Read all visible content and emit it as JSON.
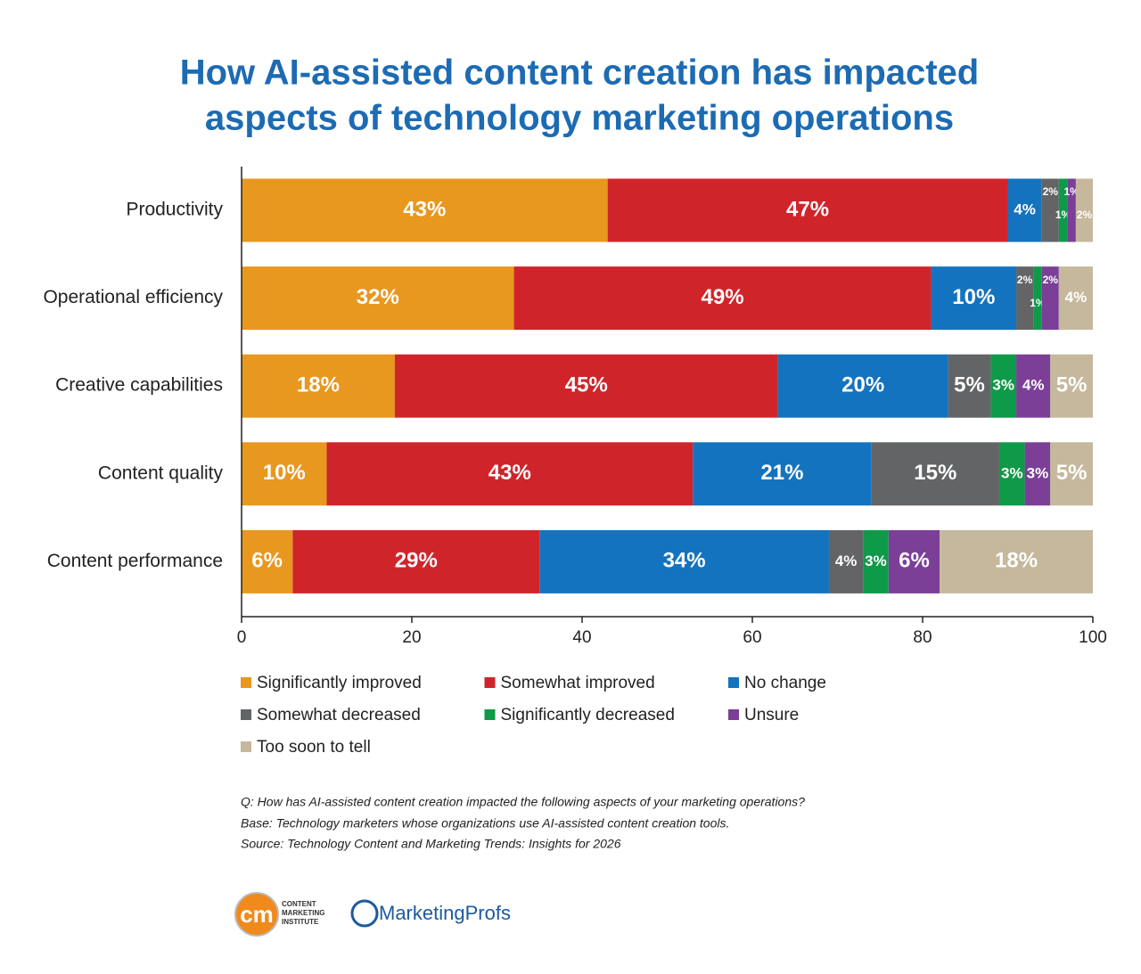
{
  "chart_data": {
    "type": "stacked-bar-horizontal",
    "title": [
      "How AI-assisted content creation has impacted",
      "aspects of technology marketing operations"
    ],
    "categories": [
      "Productivity",
      "Operational efficiency",
      "Creative capabilities",
      "Content quality",
      "Content performance"
    ],
    "series": [
      {
        "name": "Significantly improved",
        "color": "#e8971f",
        "values": [
          43,
          32,
          18,
          10,
          6
        ],
        "value_labels": [
          "43%",
          "32%",
          "18%",
          "10%",
          "6%"
        ]
      },
      {
        "name": "Somewhat improved",
        "color": "#d0242b",
        "values": [
          47,
          49,
          45,
          43,
          29
        ],
        "value_labels": [
          "47%",
          "49%",
          "45%",
          "43%",
          "29%"
        ]
      },
      {
        "name": "No change",
        "color": "#1473be",
        "values": [
          4,
          10,
          20,
          21,
          34
        ],
        "value_labels": [
          "4%",
          "10%",
          "20%",
          "21%",
          "34%"
        ]
      },
      {
        "name": "Somewhat decreased",
        "color": "#636466",
        "values": [
          2,
          2,
          5,
          15,
          4
        ],
        "value_labels": [
          "2%",
          "2%",
          "5%",
          "15%",
          "4%"
        ]
      },
      {
        "name": "Significantly decreased",
        "color": "#0e9a48",
        "values": [
          1,
          1,
          3,
          3,
          3
        ],
        "value_labels": [
          "1%",
          "1%",
          "3%",
          "3%",
          "3%"
        ]
      },
      {
        "name": "Unsure",
        "color": "#7b3f98",
        "values": [
          1,
          2,
          4,
          3,
          6
        ],
        "value_labels": [
          "1%",
          "2%",
          "4%",
          "3%",
          "6%"
        ]
      },
      {
        "name": "Too soon to tell",
        "color": "#c5b89c",
        "values": [
          2,
          4,
          5,
          5,
          18
        ],
        "value_labels": [
          "2%",
          "4%",
          "5%",
          "5%",
          "18%"
        ]
      }
    ],
    "xlim": [
      0,
      100
    ],
    "xticks": [
      0,
      20,
      40,
      60,
      80,
      100
    ],
    "grid": false,
    "notes": [
      "Q: How has AI-assisted content creation impacted the following aspects of your marketing operations?",
      "Base: Technology marketers whose organizations use AI-assisted content creation tools.",
      "Source: Technology Content and Marketing Trends: Insights for 2026"
    ]
  },
  "logos": {
    "cmi_mark": "cm",
    "cmi_lines": [
      "CONTENT",
      "MARKETING",
      "INSTITUTE"
    ],
    "mp": "MarketingProfs"
  }
}
